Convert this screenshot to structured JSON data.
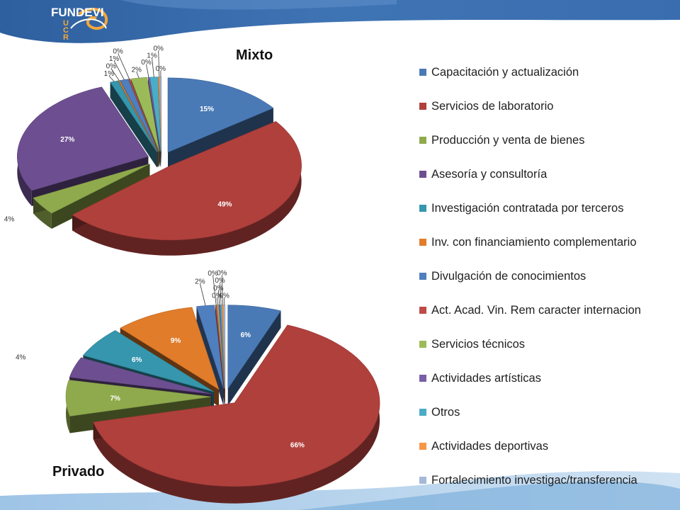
{
  "branding": {
    "logo_name": "FUNDEVI",
    "logo_acronym_lines": [
      "U",
      "C",
      "R"
    ],
    "logo_subtitle": [
      "Fundación de la Universidad de",
      "Costa Rica para la Investigación"
    ],
    "logo_icon": "wave-swirl-logo"
  },
  "legend": [
    {
      "label": "Capacitación y actualización",
      "color": "#4a7ab6"
    },
    {
      "label": "Servicios de laboratorio",
      "color": "#b0403c"
    },
    {
      "label": "Producción y venta de bienes",
      "color": "#8faa4c"
    },
    {
      "label": "Asesoría y consultoría",
      "color": "#6d4f91"
    },
    {
      "label": "Investigación contratada por terceros",
      "color": "#3596ad"
    },
    {
      "label": "Inv. con financiamiento complementario",
      "color": "#e07c2a"
    },
    {
      "label": "Divulgación de conocimientos",
      "color": "#4f7fbf"
    },
    {
      "label": "Act. Acad. Vin. Rem caracter internacion",
      "color": "#be4b48"
    },
    {
      "label": "Servicios técnicos",
      "color": "#9bbb59"
    },
    {
      "label": "Actividades artísticas",
      "color": "#7a5ea8"
    },
    {
      "label": "Otros",
      "color": "#4bacc6"
    },
    {
      "label": "Actividades deportivas",
      "color": "#f79646"
    },
    {
      "label": "Fortalecimiento investigac/transferencia",
      "color": "#a5b8d8"
    }
  ],
  "chart_data": [
    {
      "type": "pie",
      "title": "Mixto",
      "style": "3d-exploded",
      "categories": [
        "Capacitación y actualización",
        "Servicios de laboratorio",
        "Producción y venta de bienes",
        "Asesoría y consultoría",
        "Investigación contratada por terceros",
        "Inv. con financiamiento complementario",
        "Divulgación de conocimientos",
        "Act. Acad. Vin. Rem caracter internacion",
        "Servicios técnicos",
        "Actividades artísticas",
        "Otros",
        "Actividades deportivas",
        "Fortalecimiento investigac/transferencia"
      ],
      "values": [
        15,
        49,
        4,
        27,
        1,
        0,
        1,
        0,
        2,
        0,
        1,
        0,
        0
      ],
      "labels": [
        "15%",
        "49%",
        "4%",
        "27%",
        "1%",
        "0%",
        "1%",
        "0%",
        "2%",
        "0%",
        "1%",
        "0%",
        "0%"
      ],
      "legend_position": "right"
    },
    {
      "type": "pie",
      "title": "Privado",
      "style": "3d-exploded",
      "categories": [
        "Capacitación y actualización",
        "Servicios de laboratorio",
        "Producción y venta de bienes",
        "Asesoría y consultoría",
        "Investigación contratada por terceros",
        "Inv. con financiamiento complementario",
        "Divulgación de conocimientos",
        "Act. Acad. Vin. Rem caracter internacion",
        "Servicios técnicos",
        "Actividades artísticas",
        "Otros",
        "Actividades deportivas",
        "Fortalecimiento investigac/transferencia"
      ],
      "values": [
        6,
        66,
        7,
        4,
        6,
        9,
        2,
        0,
        0,
        0,
        0,
        0,
        0
      ],
      "labels": [
        "6%",
        "66%",
        "7%",
        "4%",
        "6%",
        "9%",
        "2%",
        "0%",
        "0%",
        "0%",
        "0%",
        "0%",
        "0%"
      ],
      "legend_position": "right"
    }
  ]
}
